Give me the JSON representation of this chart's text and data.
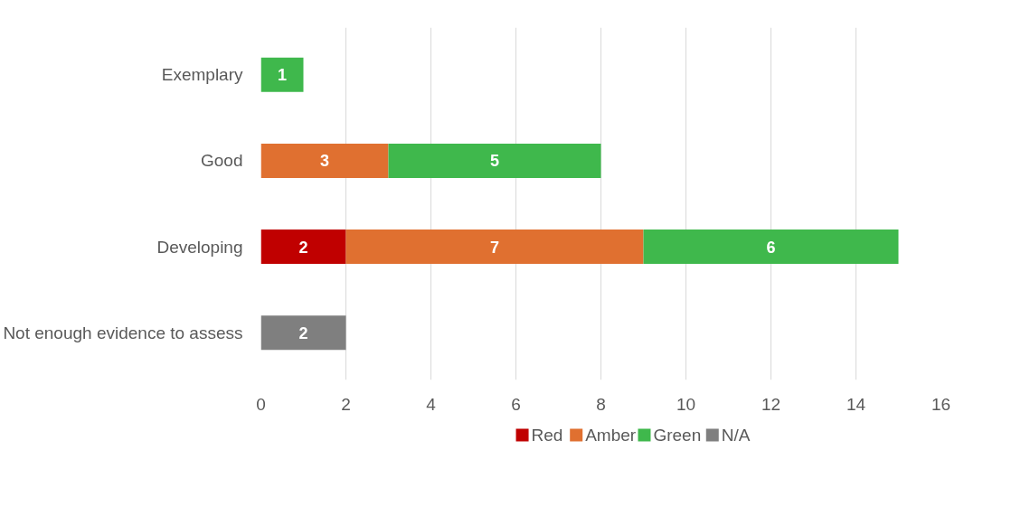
{
  "chart_data": {
    "type": "bar",
    "orientation": "horizontal",
    "stacked": true,
    "categories": [
      "Exemplary",
      "Good",
      "Developing",
      "Not enough evidence to assess"
    ],
    "series": [
      {
        "name": "Red",
        "color": "#c00000",
        "values": [
          null,
          null,
          2,
          null
        ]
      },
      {
        "name": "Amber",
        "color": "#e07030",
        "values": [
          null,
          3,
          7,
          null
        ]
      },
      {
        "name": "Green",
        "color": "#3fb84c",
        "values": [
          1,
          5,
          6,
          null
        ]
      },
      {
        "name": "N/A",
        "color": "#7f7f7f",
        "values": [
          null,
          null,
          null,
          2
        ]
      }
    ],
    "xlim": [
      0,
      16
    ],
    "xticks": [
      0,
      2,
      4,
      6,
      8,
      10,
      12,
      14,
      16
    ],
    "grid": "x",
    "legend": "bottom",
    "data_labels": true
  }
}
